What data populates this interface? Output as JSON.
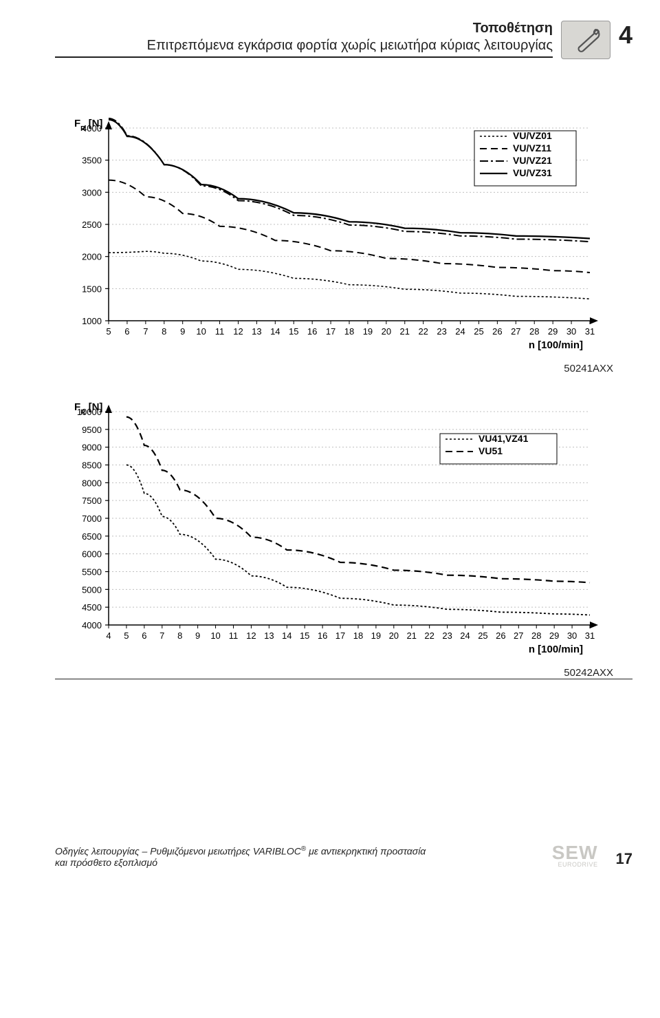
{
  "header": {
    "title": "Τοποθέτηση",
    "subtitle": "Επιτρεπόμενα εγκάρσια φορτία χωρίς μειωτήρα κύριας λειτουργίας",
    "chapter": "4"
  },
  "chart1": {
    "type": "line",
    "caption_code": "50241AXX",
    "yaxis_label": "F",
    "yaxis_sub": "R",
    "yaxis_unit": "[N]",
    "xaxis_label": "n [100/min]",
    "y_ticks": [
      1000,
      1500,
      2000,
      2500,
      3000,
      3500,
      4000
    ],
    "x_ticks": [
      5,
      6,
      7,
      8,
      9,
      10,
      11,
      12,
      13,
      14,
      15,
      16,
      17,
      18,
      19,
      20,
      21,
      22,
      23,
      24,
      25,
      26,
      27,
      28,
      29,
      30,
      31
    ],
    "xlim": [
      5,
      31
    ],
    "ylim": [
      1000,
      4000
    ],
    "plot_bg": "#ffffff",
    "grid_color": "#bfbfbf",
    "axis_color": "#000000",
    "tick_fontsize": 13,
    "label_fontsize": 15,
    "legend": {
      "border_color": "#000000",
      "items": [
        {
          "label": "VU/VZ01",
          "dash": "3,3",
          "weight": 1.5
        },
        {
          "label": "VU/VZ11",
          "dash": "10,6",
          "weight": 2
        },
        {
          "label": "VU/VZ21",
          "dash": "12,4,3,4",
          "weight": 2
        },
        {
          "label": "VU/VZ31",
          "dash": "",
          "weight": 2.3
        }
      ]
    },
    "series": [
      {
        "dash": "3,3",
        "weight": 1.6,
        "pts": [
          [
            5,
            2060
          ],
          [
            7,
            2080
          ],
          [
            8,
            2050
          ],
          [
            10,
            1930
          ],
          [
            12,
            1800
          ],
          [
            15,
            1660
          ],
          [
            18,
            1560
          ],
          [
            21,
            1490
          ],
          [
            24,
            1430
          ],
          [
            27,
            1380
          ],
          [
            31,
            1340
          ]
        ]
      },
      {
        "dash": "10,6",
        "weight": 2,
        "pts": [
          [
            5,
            3190
          ],
          [
            7,
            2930
          ],
          [
            9,
            2670
          ],
          [
            11,
            2470
          ],
          [
            14,
            2250
          ],
          [
            17,
            2090
          ],
          [
            20,
            1970
          ],
          [
            23,
            1890
          ],
          [
            26,
            1830
          ],
          [
            29,
            1780
          ],
          [
            31,
            1750
          ]
        ]
      },
      {
        "dash": "12,4,3,4",
        "weight": 2,
        "pts": [
          [
            5,
            4150
          ],
          [
            6,
            3880
          ],
          [
            8,
            3430
          ],
          [
            10,
            3100
          ],
          [
            12,
            2870
          ],
          [
            15,
            2640
          ],
          [
            18,
            2490
          ],
          [
            21,
            2390
          ],
          [
            24,
            2320
          ],
          [
            27,
            2270
          ],
          [
            31,
            2230
          ]
        ]
      },
      {
        "dash": "",
        "weight": 2.3,
        "pts": [
          [
            5,
            4130
          ],
          [
            6,
            3870
          ],
          [
            8,
            3430
          ],
          [
            10,
            3120
          ],
          [
            12,
            2900
          ],
          [
            15,
            2680
          ],
          [
            18,
            2540
          ],
          [
            21,
            2440
          ],
          [
            24,
            2370
          ],
          [
            27,
            2320
          ],
          [
            31,
            2280
          ]
        ]
      }
    ]
  },
  "chart2": {
    "type": "line",
    "caption_code": "50242AXX",
    "yaxis_label": "F",
    "yaxis_sub": "R",
    "yaxis_unit": "[N]",
    "xaxis_label": "n [100/min]",
    "y_ticks": [
      4000,
      4500,
      5000,
      5500,
      6000,
      6500,
      7000,
      7500,
      8000,
      8500,
      9000,
      9500,
      10000
    ],
    "x_ticks": [
      4,
      5,
      6,
      7,
      8,
      9,
      10,
      11,
      12,
      13,
      14,
      15,
      16,
      17,
      18,
      19,
      20,
      21,
      22,
      23,
      24,
      25,
      26,
      27,
      28,
      29,
      30,
      31
    ],
    "xlim": [
      4,
      31
    ],
    "ylim": [
      4000,
      10000
    ],
    "plot_bg": "#ffffff",
    "grid_color": "#bfbfbf",
    "axis_color": "#000000",
    "tick_fontsize": 13,
    "label_fontsize": 15,
    "legend": {
      "border_color": "#000000",
      "items": [
        {
          "label": "VU41,VZ41",
          "dash": "3,3",
          "weight": 1.6
        },
        {
          "label": "VU51",
          "dash": "10,6",
          "weight": 2
        }
      ]
    },
    "series": [
      {
        "dash": "3,3",
        "weight": 1.8,
        "pts": [
          [
            5,
            8500
          ],
          [
            6,
            7700
          ],
          [
            7,
            7050
          ],
          [
            8,
            6550
          ],
          [
            10,
            5850
          ],
          [
            12,
            5380
          ],
          [
            14,
            5060
          ],
          [
            17,
            4750
          ],
          [
            20,
            4560
          ],
          [
            23,
            4440
          ],
          [
            26,
            4360
          ],
          [
            29,
            4310
          ],
          [
            31,
            4280
          ]
        ]
      },
      {
        "dash": "10,6",
        "weight": 2.2,
        "pts": [
          [
            5,
            9850
          ],
          [
            6,
            9050
          ],
          [
            7,
            8350
          ],
          [
            8,
            7800
          ],
          [
            10,
            7000
          ],
          [
            12,
            6470
          ],
          [
            14,
            6110
          ],
          [
            17,
            5760
          ],
          [
            20,
            5540
          ],
          [
            23,
            5400
          ],
          [
            26,
            5300
          ],
          [
            29,
            5230
          ],
          [
            31,
            5190
          ]
        ]
      }
    ]
  },
  "footer": {
    "line1": "Οδηγίες λειτουργίας – Ρυθμιζόμενοι μειωτήρες VARIBLOC",
    "reg": "®",
    "line1b": " με αντιεκρηκτική προστασία",
    "line2": "και πρόσθετο εξοπλισμό",
    "logo": "SEW",
    "logo_sub": "EURODRIVE",
    "page_number": "17"
  }
}
